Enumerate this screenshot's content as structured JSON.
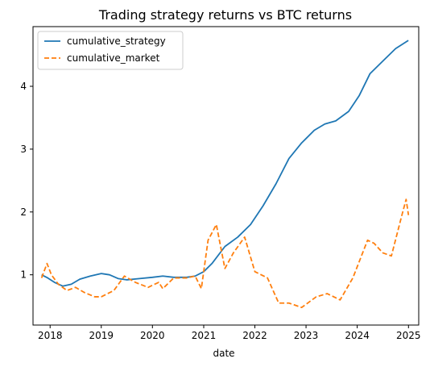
{
  "chart_data": {
    "type": "line",
    "title": "Trading strategy returns vs BTC returns",
    "xlabel": "date",
    "ylabel": "",
    "xlim": [
      "2017-09-01",
      "2025-03-15"
    ],
    "ylim": [
      0.2,
      4.95
    ],
    "x_ticks": [
      "2018",
      "2019",
      "2020",
      "2021",
      "2022",
      "2023",
      "2024",
      "2025"
    ],
    "y_ticks": [
      1,
      2,
      3,
      4
    ],
    "grid": false,
    "legend_position": "top-left",
    "series": [
      {
        "name": "cumulative_strategy",
        "color": "#1f77b4",
        "line_style": "solid",
        "points": [
          [
            "2017-11-01",
            1.0
          ],
          [
            "2017-12-15",
            0.95
          ],
          [
            "2018-02-01",
            0.88
          ],
          [
            "2018-04-01",
            0.82
          ],
          [
            "2018-06-01",
            0.85
          ],
          [
            "2018-08-01",
            0.93
          ],
          [
            "2018-10-15",
            0.98
          ],
          [
            "2019-01-01",
            1.02
          ],
          [
            "2019-03-01",
            1.0
          ],
          [
            "2019-05-01",
            0.94
          ],
          [
            "2019-07-01",
            0.92
          ],
          [
            "2019-10-01",
            0.94
          ],
          [
            "2020-01-01",
            0.96
          ],
          [
            "2020-03-15",
            0.98
          ],
          [
            "2020-06-01",
            0.96
          ],
          [
            "2020-09-01",
            0.96
          ],
          [
            "2020-11-01",
            0.98
          ],
          [
            "2021-01-01",
            1.05
          ],
          [
            "2021-03-01",
            1.18
          ],
          [
            "2021-06-01",
            1.45
          ],
          [
            "2021-09-01",
            1.6
          ],
          [
            "2021-12-01",
            1.8
          ],
          [
            "2022-03-01",
            2.1
          ],
          [
            "2022-06-01",
            2.45
          ],
          [
            "2022-09-01",
            2.85
          ],
          [
            "2022-12-01",
            3.1
          ],
          [
            "2023-03-01",
            3.3
          ],
          [
            "2023-05-15",
            3.4
          ],
          [
            "2023-08-01",
            3.45
          ],
          [
            "2023-11-01",
            3.6
          ],
          [
            "2024-01-15",
            3.85
          ],
          [
            "2024-04-01",
            4.2
          ],
          [
            "2024-07-01",
            4.4
          ],
          [
            "2024-10-01",
            4.6
          ],
          [
            "2024-12-31",
            4.73
          ]
        ]
      },
      {
        "name": "cumulative_market",
        "color": "#ff7f0e",
        "line_style": "dashed",
        "points": [
          [
            "2017-11-01",
            0.95
          ],
          [
            "2017-12-10",
            1.18
          ],
          [
            "2018-01-10",
            1.0
          ],
          [
            "2018-03-01",
            0.85
          ],
          [
            "2018-05-01",
            0.75
          ],
          [
            "2018-07-01",
            0.8
          ],
          [
            "2018-09-01",
            0.72
          ],
          [
            "2018-11-15",
            0.65
          ],
          [
            "2019-01-01",
            0.65
          ],
          [
            "2019-04-01",
            0.75
          ],
          [
            "2019-06-15",
            0.98
          ],
          [
            "2019-09-01",
            0.88
          ],
          [
            "2019-12-01",
            0.8
          ],
          [
            "2020-02-15",
            0.88
          ],
          [
            "2020-03-15",
            0.78
          ],
          [
            "2020-06-01",
            0.95
          ],
          [
            "2020-09-01",
            0.95
          ],
          [
            "2020-11-01",
            0.98
          ],
          [
            "2020-12-15",
            0.78
          ],
          [
            "2021-02-01",
            1.55
          ],
          [
            "2021-04-01",
            1.8
          ],
          [
            "2021-06-01",
            1.1
          ],
          [
            "2021-08-01",
            1.35
          ],
          [
            "2021-10-20",
            1.6
          ],
          [
            "2022-01-01",
            1.05
          ],
          [
            "2022-04-01",
            0.95
          ],
          [
            "2022-06-20",
            0.55
          ],
          [
            "2022-09-01",
            0.55
          ],
          [
            "2022-12-01",
            0.48
          ],
          [
            "2023-03-15",
            0.65
          ],
          [
            "2023-06-01",
            0.7
          ],
          [
            "2023-09-01",
            0.6
          ],
          [
            "2023-12-01",
            0.95
          ],
          [
            "2024-03-15",
            1.55
          ],
          [
            "2024-05-01",
            1.5
          ],
          [
            "2024-07-01",
            1.35
          ],
          [
            "2024-09-01",
            1.3
          ],
          [
            "2024-11-15",
            1.95
          ],
          [
            "2024-12-15",
            2.2
          ],
          [
            "2025-01-01",
            1.95
          ]
        ]
      }
    ]
  }
}
